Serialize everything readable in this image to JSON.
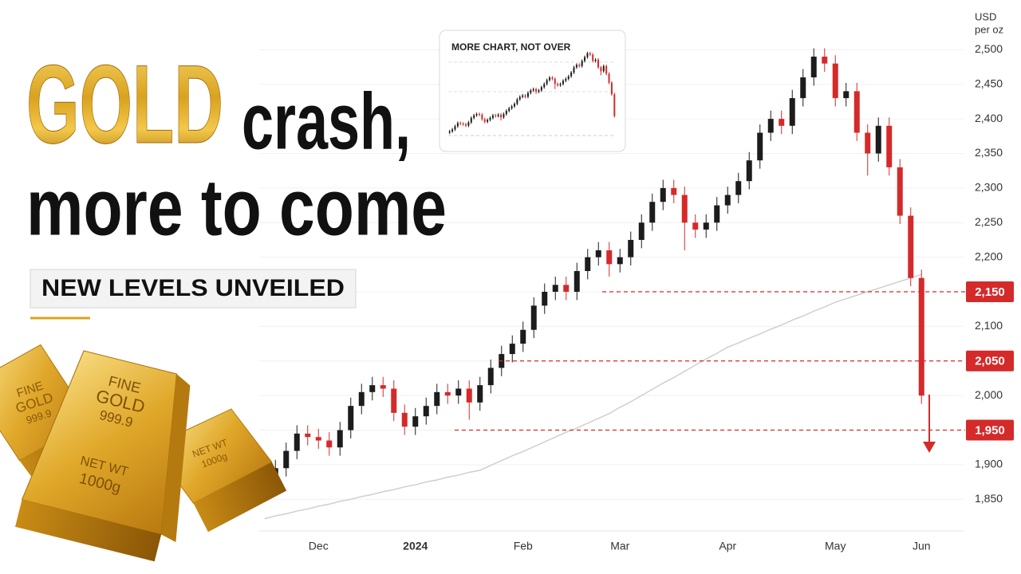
{
  "headline": {
    "gold": "GOLD",
    "crash": "crash,",
    "line2": "more to come",
    "banner": "NEW LEVELS UNVEILED"
  },
  "gold_bars": {
    "stamp": [
      "FINE",
      "GOLD",
      "999.9",
      "NET WT",
      "1000g"
    ]
  },
  "inset": {
    "title": "MORE CHART, NOT OVER"
  },
  "chart_data": {
    "type": "candlestick",
    "y_label": [
      "USD",
      "per oz"
    ],
    "categories": [
      null,
      null,
      null,
      null,
      null,
      "Dec",
      null,
      null,
      null,
      null,
      null,
      null,
      null,
      null,
      "2024",
      null,
      null,
      null,
      null,
      null,
      null,
      null,
      null,
      null,
      "Feb",
      null,
      null,
      null,
      null,
      null,
      null,
      null,
      null,
      "Mar",
      null,
      null,
      null,
      null,
      null,
      null,
      null,
      null,
      null,
      "Apr",
      null,
      null,
      null,
      null,
      null,
      null,
      null,
      null,
      null,
      "May",
      null,
      null,
      null,
      null,
      null,
      null,
      null,
      "Jun"
    ],
    "open": [
      1870,
      1880,
      1895,
      1920,
      1945,
      1940,
      1935,
      1925,
      1950,
      1985,
      2005,
      2015,
      2010,
      1975,
      1955,
      1970,
      1985,
      2005,
      2000,
      2010,
      1990,
      2015,
      2040,
      2060,
      2075,
      2095,
      2130,
      2150,
      2160,
      2150,
      2180,
      2200,
      2210,
      2190,
      2200,
      2225,
      2250,
      2280,
      2300,
      2290,
      2250,
      2240,
      2250,
      2275,
      2290,
      2310,
      2340,
      2380,
      2400,
      2390,
      2430,
      2460,
      2490,
      2480,
      2430,
      2440,
      2380,
      2350,
      2390,
      2330,
      2260,
      2170
    ],
    "high": [
      1892,
      1907,
      1932,
      1957,
      1957,
      1952,
      1947,
      1962,
      1997,
      2017,
      2027,
      2027,
      2022,
      1987,
      1982,
      1997,
      2017,
      2017,
      2022,
      2022,
      2027,
      2052,
      2072,
      2087,
      2107,
      2142,
      2162,
      2172,
      2172,
      2192,
      2212,
      2222,
      2222,
      2212,
      2237,
      2262,
      2292,
      2312,
      2312,
      2302,
      2262,
      2262,
      2287,
      2302,
      2322,
      2352,
      2392,
      2412,
      2412,
      2442,
      2472,
      2502,
      2502,
      2492,
      2452,
      2452,
      2392,
      2402,
      2402,
      2342,
      2272,
      2182
    ],
    "low": [
      1858,
      1868,
      1883,
      1908,
      1928,
      1923,
      1913,
      1913,
      1938,
      1973,
      1993,
      1998,
      1963,
      1943,
      1943,
      1958,
      1973,
      1988,
      1988,
      1965,
      1978,
      2003,
      2028,
      2048,
      2063,
      2083,
      2118,
      2138,
      2138,
      2138,
      2168,
      2188,
      2172,
      2178,
      2188,
      2213,
      2238,
      2268,
      2278,
      2210,
      2228,
      2228,
      2238,
      2263,
      2278,
      2298,
      2328,
      2368,
      2378,
      2378,
      2418,
      2448,
      2468,
      2418,
      2418,
      2368,
      2318,
      2338,
      2318,
      2248,
      2158,
      1988
    ],
    "close": [
      1880,
      1895,
      1920,
      1945,
      1940,
      1935,
      1925,
      1950,
      1985,
      2005,
      2015,
      2010,
      1975,
      1955,
      1970,
      1985,
      2005,
      2000,
      2010,
      1990,
      2015,
      2040,
      2060,
      2075,
      2095,
      2130,
      2150,
      2160,
      2150,
      2180,
      2200,
      2210,
      2190,
      2200,
      2225,
      2250,
      2280,
      2300,
      2290,
      2250,
      2240,
      2250,
      2275,
      2290,
      2310,
      2340,
      2380,
      2400,
      2390,
      2430,
      2460,
      2490,
      2480,
      2430,
      2440,
      2380,
      2350,
      2390,
      2330,
      2260,
      2170,
      2000
    ],
    "up_color": "#1c1c1c",
    "down_color": "#d42a2a",
    "moving_average": {
      "color": "#cfcfcf",
      "values": [
        1822,
        1826,
        1829,
        1833,
        1836,
        1840,
        1843,
        1847,
        1850,
        1854,
        1857,
        1861,
        1864,
        1868,
        1871,
        1875,
        1878,
        1882,
        1885,
        1889,
        1892,
        1899,
        1906,
        1913,
        1919,
        1926,
        1933,
        1940,
        1947,
        1953,
        1960,
        1967,
        1974,
        1983,
        1991,
        2000,
        2009,
        2018,
        2026,
        2035,
        2044,
        2053,
        2061,
        2070,
        2076,
        2083,
        2089,
        2096,
        2102,
        2109,
        2115,
        2122,
        2128,
        2135,
        2140,
        2145,
        2150,
        2155,
        2160,
        2165,
        2170,
        2175
      ]
    },
    "levels": {
      "color": "#d42a2a",
      "values": [
        2150,
        2050,
        1950
      ],
      "value_labels": [
        "2,150",
        "2,050",
        "1,950"
      ]
    },
    "ylim": [
      1810,
      2520
    ],
    "yticks": [
      {
        "value": 1850,
        "label": "1,850"
      },
      {
        "value": 1900,
        "label": "1,900"
      },
      {
        "value": 1950,
        "label": "1,950"
      },
      {
        "value": 2000,
        "label": "2,000"
      },
      {
        "value": 2050,
        "label": "2,050"
      },
      {
        "value": 2100,
        "label": "2,100"
      },
      {
        "value": 2150,
        "label": "2,150"
      },
      {
        "value": 2200,
        "label": "2,200"
      },
      {
        "value": 2250,
        "label": "2,250"
      },
      {
        "value": 2300,
        "label": "2,300"
      },
      {
        "value": 2350,
        "label": "2,350"
      },
      {
        "value": 2400,
        "label": "2,400"
      },
      {
        "value": 2450,
        "label": "2,450"
      },
      {
        "value": 2500,
        "label": "2,500"
      }
    ],
    "grid": true
  }
}
